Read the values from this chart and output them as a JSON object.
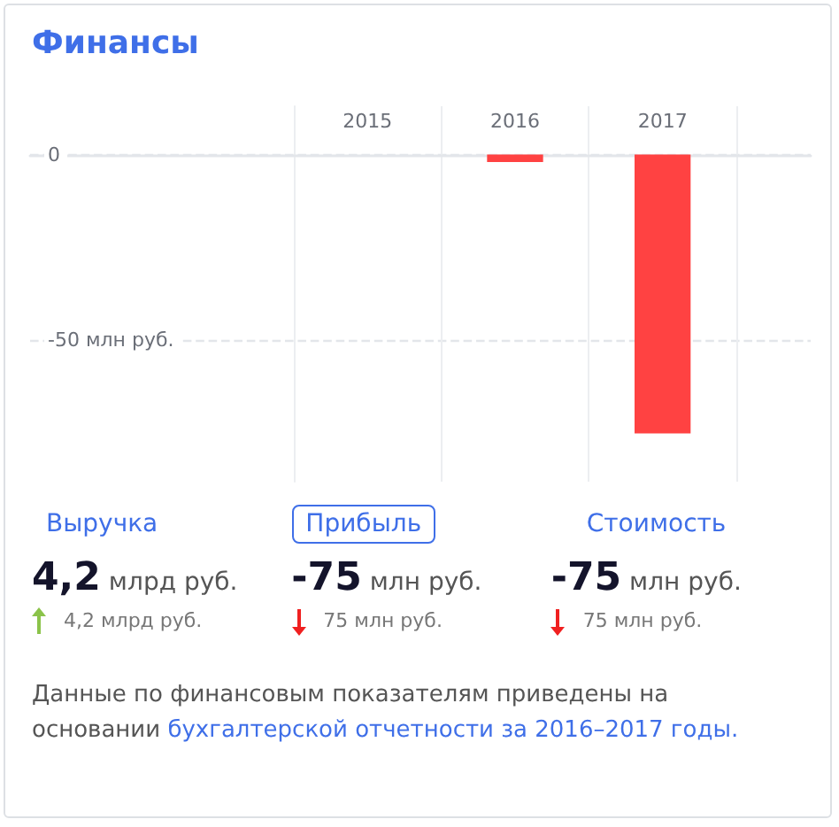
{
  "chart_data": {
    "type": "bar",
    "title": "Финансы",
    "categories": [
      "2015",
      "2016",
      "2017"
    ],
    "values": [
      null,
      -2,
      -75
    ],
    "color": "#ff4242",
    "ylim": [
      -88,
      13
    ],
    "yticks": [
      0,
      {
        "value": -50,
        "label": "-50 млн руб."
      }
    ],
    "grid": true,
    "annotations": [
      "Выручка",
      "Прибыль",
      "Стоимость",
      "4,2 млрд руб.",
      "-75 млн руб.",
      "-75 млн руб.",
      "4,2 млрд руб.",
      "75 млн руб.",
      "75 млн руб.",
      "Данные по финансовым показателям приведены на основании ",
      "бухгалтерской отчетности за 2016–2017 годы."
    ]
  }
}
